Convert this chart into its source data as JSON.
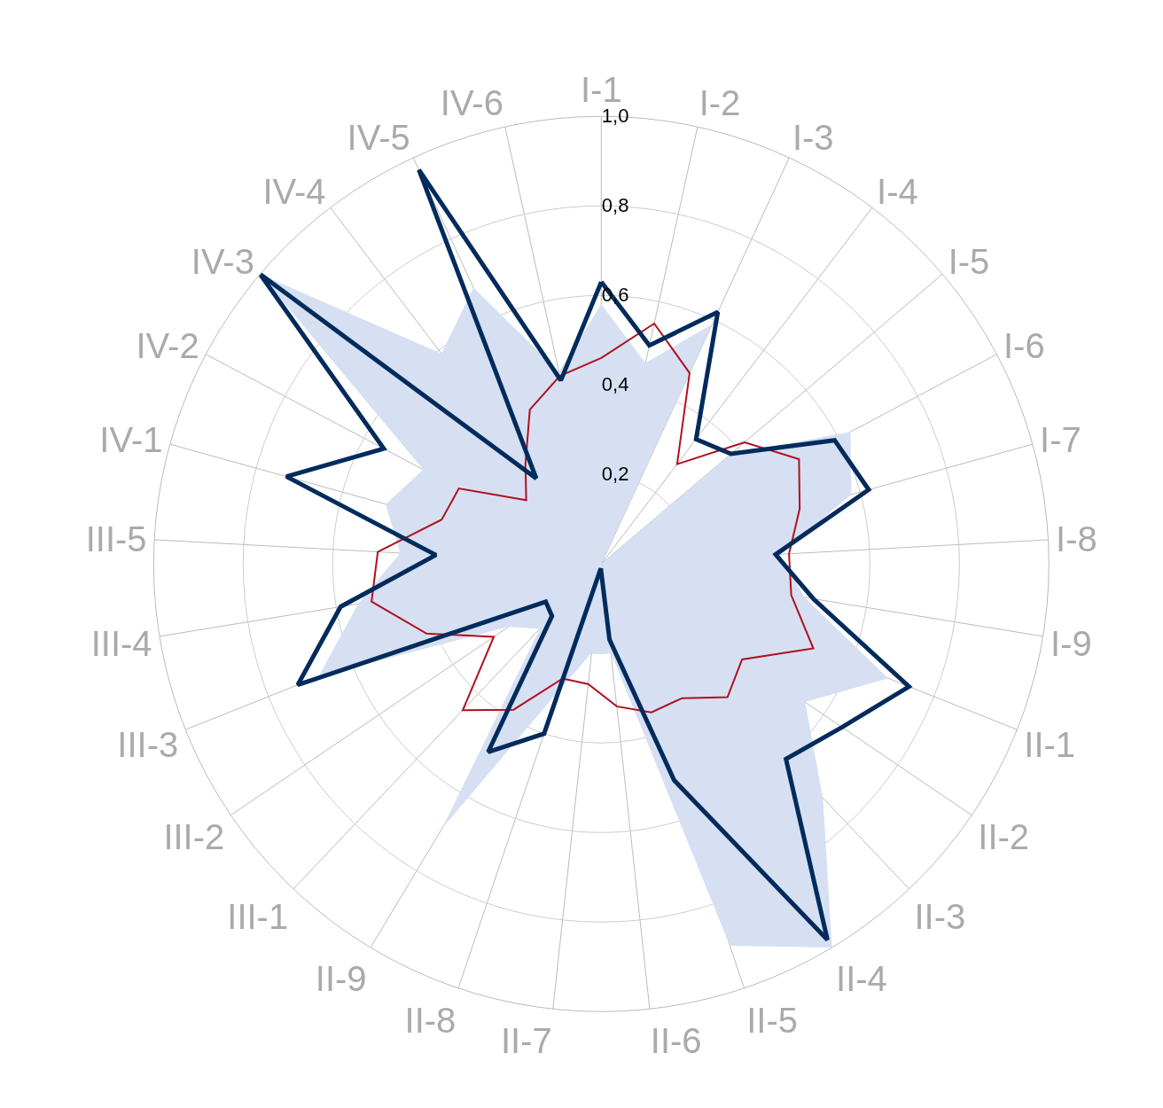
{
  "chart_data": {
    "type": "radar",
    "categories": [
      "I-1",
      "I-2",
      "I-3",
      "I-4",
      "I-5",
      "I-6",
      "I-7",
      "I-8",
      "I-9",
      "II-1",
      "II-2",
      "II-3",
      "II-4",
      "II-5",
      "II-6",
      "II-7",
      "II-8",
      "II-9",
      "III-1",
      "III-2",
      "III-3",
      "III-4",
      "III-5",
      "IV-1",
      "IV-2",
      "IV-3",
      "IV-4",
      "IV-5",
      "IV-6"
    ],
    "series": [
      {
        "type": "area",
        "color": "#d6e0f2",
        "values": [
          0.58,
          0.46,
          0.59,
          0.0,
          0.38,
          0.63,
          0.58,
          0.4,
          0.46,
          0.69,
          0.55,
          0.72,
          1.0,
          0.9,
          0.2,
          0.2,
          0.3,
          0.69,
          0.2,
          0.25,
          0.68,
          0.55,
          0.45,
          0.5,
          0.45,
          1.0,
          0.59,
          0.68,
          0.44
        ]
      },
      {
        "color": "#b01020",
        "values": [
          0.46,
          0.55,
          0.47,
          0.28,
          0.42,
          0.5,
          0.46,
          0.42,
          0.43,
          0.51,
          0.38,
          0.41,
          0.35,
          0.35,
          0.32,
          0.27,
          0.27,
          0.38,
          0.45,
          0.29,
          0.42,
          0.52,
          0.5,
          0.37,
          0.36,
          0.22,
          0.28,
          0.38,
          0.43
        ]
      },
      {
        "color": "#002b5c",
        "values": [
          0.63,
          0.5,
          0.62,
          0.35,
          0.38,
          0.59,
          0.62,
          0.39,
          0.48,
          0.74,
          0.65,
          0.6,
          0.98,
          0.51,
          0.17,
          0.01,
          0.4,
          0.49,
          0.16,
          0.15,
          0.73,
          0.59,
          0.37,
          0.73,
          0.55,
          1.0,
          0.24,
          0.97,
          0.42
        ]
      }
    ],
    "ylim": [
      0,
      1.0
    ],
    "yticks": [
      {
        "value": 0.2,
        "label": "0,2"
      },
      {
        "value": 0.4,
        "label": "0,4"
      },
      {
        "value": 0.6,
        "label": "0,6"
      },
      {
        "value": 0.8,
        "label": "0,8"
      },
      {
        "value": 1.0,
        "label": "1,0"
      }
    ],
    "grid": true,
    "legend": false,
    "marker": "none"
  }
}
